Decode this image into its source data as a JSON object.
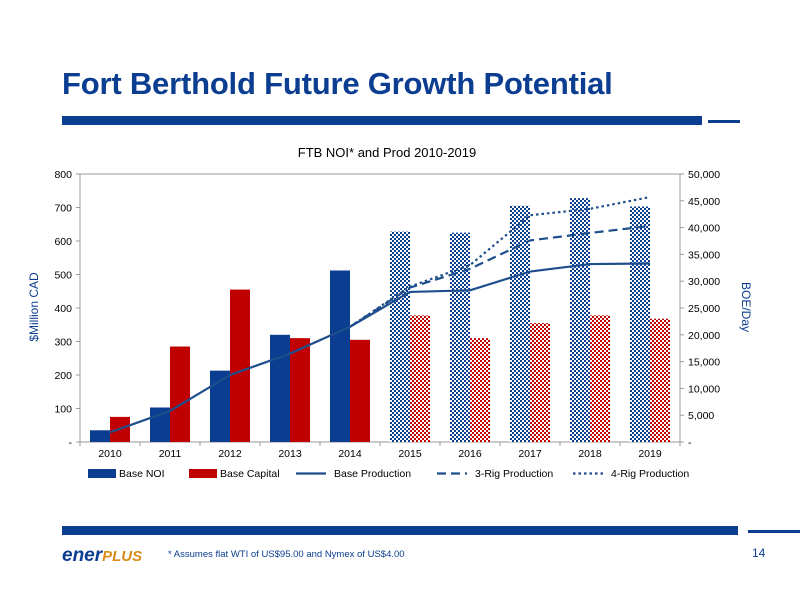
{
  "slide": {
    "title": "Fort Berthold Future Growth Potential",
    "footnote": "* Assumes flat WTI of US$95.00 and Nymex of US$4.00",
    "page_number": "14",
    "logo_part1": "ener",
    "logo_part2": "PLUS"
  },
  "colors": {
    "navy": "#0b3d91",
    "red": "#c00000",
    "line": "#1f4e8c"
  },
  "chart_data": {
    "type": "bar",
    "title": "FTB  NOI* and Prod 2010-2019",
    "ylabel": "$Million CAD",
    "y2label": "BOE/Day",
    "categories": [
      "2010",
      "2011",
      "2012",
      "2013",
      "2014",
      "2015",
      "2016",
      "2017",
      "2018",
      "2019"
    ],
    "ylim": [
      0,
      800
    ],
    "y_ticks": [
      0,
      100,
      200,
      300,
      400,
      500,
      600,
      700,
      800
    ],
    "y_tick_labels": [
      "-",
      "100",
      "200",
      "300",
      "400",
      "500",
      "600",
      "700",
      "800"
    ],
    "y2lim": [
      0,
      50000
    ],
    "y2_ticks": [
      0,
      5000,
      10000,
      15000,
      20000,
      25000,
      30000,
      35000,
      40000,
      45000,
      50000
    ],
    "y2_tick_labels": [
      "-",
      "5,000",
      "10,000",
      "15,000",
      "20,000",
      "25,000",
      "30,000",
      "35,000",
      "40,000",
      "45,000",
      "50,000"
    ],
    "forecast_start_index": 5,
    "bar_series": [
      {
        "name": "Base NOI",
        "color": "#0b3d91",
        "values": [
          35,
          103,
          213,
          320,
          512,
          628,
          625,
          705,
          728,
          703
        ]
      },
      {
        "name": "Base Capital",
        "color": "#c00000",
        "values": [
          75,
          285,
          455,
          310,
          305,
          378,
          310,
          355,
          378,
          368
        ]
      }
    ],
    "line_series": [
      {
        "name": "Base Production",
        "style": "solid",
        "values": [
          1800,
          5800,
          12500,
          16500,
          21500,
          28000,
          28300,
          31800,
          33200,
          33300
        ]
      },
      {
        "name": "3-Rig Production",
        "style": "dashed",
        "values": [
          null,
          null,
          null,
          null,
          21500,
          28800,
          32300,
          37600,
          39000,
          40300
        ]
      },
      {
        "name": "4-Rig Production",
        "style": "dotted",
        "values": [
          null,
          null,
          null,
          null,
          21500,
          29000,
          33000,
          42300,
          43500,
          45700
        ]
      }
    ],
    "legend_position": "bottom",
    "grid": false
  }
}
